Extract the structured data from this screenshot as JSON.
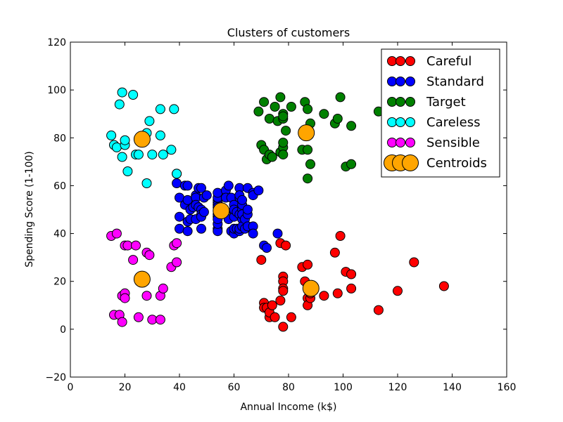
{
  "chart_data": {
    "type": "scatter",
    "title": "Clusters of customers",
    "xlabel": "Annual Income (k$)",
    "ylabel": "Spending Score (1-100)",
    "xlim": [
      0,
      160
    ],
    "ylim": [
      -20,
      120
    ],
    "xticks": [
      0,
      20,
      40,
      60,
      80,
      100,
      120,
      140,
      160
    ],
    "yticks": [
      -20,
      0,
      20,
      40,
      60,
      80,
      100,
      120
    ],
    "grid": false,
    "legend_position": "top-right",
    "series": [
      {
        "name": "Careful",
        "color": "#ff0000",
        "points": [
          [
            70,
            29
          ],
          [
            71,
            11
          ],
          [
            71,
            9
          ],
          [
            72,
            9
          ],
          [
            73,
            5
          ],
          [
            73,
            7
          ],
          [
            74,
            10
          ],
          [
            75,
            5
          ],
          [
            77,
            12
          ],
          [
            77,
            36
          ],
          [
            78,
            22
          ],
          [
            78,
            20
          ],
          [
            78,
            17
          ],
          [
            78,
            16
          ],
          [
            78,
            1
          ],
          [
            79,
            35
          ],
          [
            81,
            5
          ],
          [
            85,
            26
          ],
          [
            86,
            20
          ],
          [
            87,
            27
          ],
          [
            87,
            13
          ],
          [
            87,
            10
          ],
          [
            88,
            13
          ],
          [
            88,
            15
          ],
          [
            93,
            14
          ],
          [
            97,
            32
          ],
          [
            98,
            15
          ],
          [
            99,
            39
          ],
          [
            101,
            24
          ],
          [
            103,
            23
          ],
          [
            103,
            17
          ],
          [
            113,
            8
          ],
          [
            120,
            16
          ],
          [
            126,
            28
          ],
          [
            137,
            18
          ]
        ]
      },
      {
        "name": "Standard",
        "color": "#0000ff",
        "points": [
          [
            39,
            61
          ],
          [
            39,
            65
          ],
          [
            40,
            55
          ],
          [
            40,
            47
          ],
          [
            40,
            42
          ],
          [
            42,
            52
          ],
          [
            42,
            60
          ],
          [
            43,
            60
          ],
          [
            43,
            54
          ],
          [
            43,
            45
          ],
          [
            43,
            41
          ],
          [
            44,
            50
          ],
          [
            44,
            46
          ],
          [
            45,
            51
          ],
          [
            46,
            46
          ],
          [
            46,
            56
          ],
          [
            46,
            55
          ],
          [
            46,
            52
          ],
          [
            47,
            59
          ],
          [
            47,
            51
          ],
          [
            48,
            59
          ],
          [
            48,
            50
          ],
          [
            48,
            48
          ],
          [
            48,
            47
          ],
          [
            48,
            42
          ],
          [
            49,
            49
          ],
          [
            49,
            55
          ],
          [
            50,
            56
          ],
          [
            54,
            47
          ],
          [
            54,
            54
          ],
          [
            54,
            53
          ],
          [
            54,
            48
          ],
          [
            54,
            52
          ],
          [
            54,
            42
          ],
          [
            54,
            51
          ],
          [
            54,
            55
          ],
          [
            54,
            41
          ],
          [
            54,
            44
          ],
          [
            54,
            57
          ],
          [
            54,
            46
          ],
          [
            57,
            58
          ],
          [
            57,
            55
          ],
          [
            58,
            60
          ],
          [
            58,
            46
          ],
          [
            59,
            55
          ],
          [
            59,
            41
          ],
          [
            60,
            49
          ],
          [
            60,
            40
          ],
          [
            60,
            42
          ],
          [
            60,
            52
          ],
          [
            60,
            47
          ],
          [
            60,
            50
          ],
          [
            61,
            42
          ],
          [
            61,
            49
          ],
          [
            62,
            41
          ],
          [
            62,
            48
          ],
          [
            62,
            59
          ],
          [
            62,
            55
          ],
          [
            62,
            56
          ],
          [
            62,
            42
          ],
          [
            63,
            50
          ],
          [
            63,
            46
          ],
          [
            63,
            43
          ],
          [
            63,
            48
          ],
          [
            63,
            52
          ],
          [
            63,
            54
          ],
          [
            64,
            42
          ],
          [
            64,
            46
          ],
          [
            65,
            48
          ],
          [
            65,
            50
          ],
          [
            65,
            43
          ],
          [
            65,
            59
          ],
          [
            67,
            43
          ],
          [
            67,
            57
          ],
          [
            67,
            56
          ],
          [
            67,
            40
          ],
          [
            69,
            58
          ],
          [
            71,
            35
          ],
          [
            72,
            34
          ],
          [
            76,
            40
          ]
        ]
      },
      {
        "name": "Target",
        "color": "#008000",
        "points": [
          [
            69,
            91
          ],
          [
            70,
            77
          ],
          [
            71,
            95
          ],
          [
            71,
            75
          ],
          [
            72,
            71
          ],
          [
            73,
            88
          ],
          [
            73,
            73
          ],
          [
            74,
            72
          ],
          [
            75,
            93
          ],
          [
            76,
            87
          ],
          [
            77,
            97
          ],
          [
            77,
            74
          ],
          [
            78,
            90
          ],
          [
            78,
            88
          ],
          [
            78,
            76
          ],
          [
            78,
            89
          ],
          [
            78,
            78
          ],
          [
            78,
            73
          ],
          [
            79,
            83
          ],
          [
            81,
            93
          ],
          [
            85,
            75
          ],
          [
            86,
            95
          ],
          [
            87,
            63
          ],
          [
            87,
            75
          ],
          [
            87,
            92
          ],
          [
            88,
            86
          ],
          [
            88,
            69
          ],
          [
            93,
            90
          ],
          [
            97,
            86
          ],
          [
            98,
            88
          ],
          [
            99,
            97
          ],
          [
            101,
            68
          ],
          [
            103,
            85
          ],
          [
            103,
            69
          ],
          [
            113,
            91
          ]
        ]
      },
      {
        "name": "Careless",
        "color": "#00ffff",
        "points": [
          [
            15,
            81
          ],
          [
            16,
            77
          ],
          [
            17,
            76
          ],
          [
            18,
            94
          ],
          [
            19,
            72
          ],
          [
            19,
            99
          ],
          [
            20,
            77
          ],
          [
            20,
            79
          ],
          [
            21,
            66
          ],
          [
            23,
            98
          ],
          [
            24,
            73
          ],
          [
            25,
            73
          ],
          [
            28,
            82
          ],
          [
            28,
            61
          ],
          [
            29,
            87
          ],
          [
            30,
            73
          ],
          [
            33,
            92
          ],
          [
            33,
            81
          ],
          [
            34,
            73
          ],
          [
            37,
            75
          ],
          [
            38,
            92
          ],
          [
            39,
            65
          ]
        ]
      },
      {
        "name": "Sensible",
        "color": "#ff00ff",
        "points": [
          [
            15,
            39
          ],
          [
            16,
            6
          ],
          [
            17,
            40
          ],
          [
            18,
            6
          ],
          [
            19,
            3
          ],
          [
            19,
            14
          ],
          [
            20,
            15
          ],
          [
            20,
            13
          ],
          [
            20,
            35
          ],
          [
            21,
            35
          ],
          [
            23,
            29
          ],
          [
            24,
            35
          ],
          [
            25,
            5
          ],
          [
            28,
            14
          ],
          [
            28,
            32
          ],
          [
            29,
            31
          ],
          [
            30,
            4
          ],
          [
            33,
            4
          ],
          [
            33,
            14
          ],
          [
            34,
            17
          ],
          [
            37,
            26
          ],
          [
            38,
            35
          ],
          [
            39,
            36
          ],
          [
            39,
            28
          ]
        ]
      }
    ],
    "centroids": {
      "name": "Centroids",
      "color": "#ffa500",
      "points": [
        [
          26.3,
          79.4
        ],
        [
          55.3,
          49.5
        ],
        [
          86.5,
          82.1
        ],
        [
          26.3,
          20.9
        ],
        [
          88.2,
          17.1
        ]
      ]
    }
  }
}
